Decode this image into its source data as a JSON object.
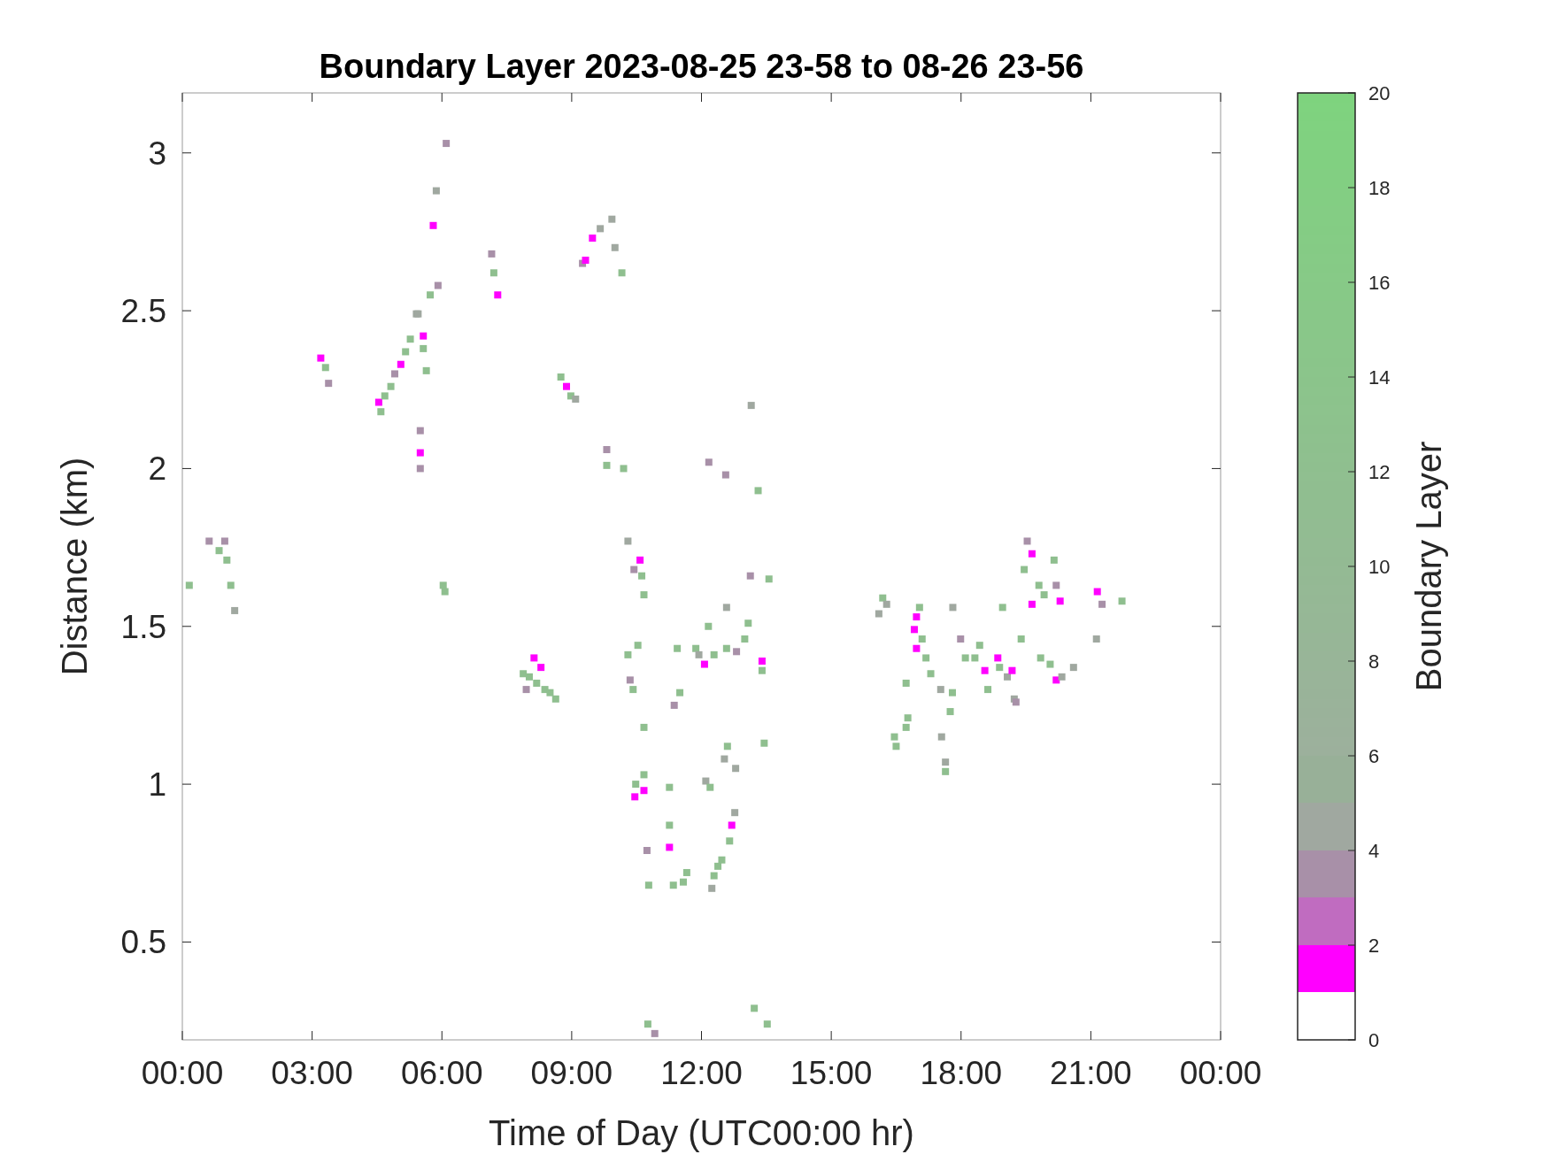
{
  "chart_data": {
    "type": "scatter",
    "title": "Boundary Layer 2023-08-25 23-58 to 08-26 23-56",
    "xlabel": "Time of Day (UTC00:00 hr)",
    "ylabel": "Distance (km)",
    "clabel": "Boundary Layer",
    "marker": "square",
    "grid": false,
    "xlim": [
      0,
      24
    ],
    "ylim": [
      0.19,
      3.19
    ],
    "xticks": [
      {
        "value": 0,
        "label": "00:00"
      },
      {
        "value": 3,
        "label": "03:00"
      },
      {
        "value": 6,
        "label": "06:00"
      },
      {
        "value": 9,
        "label": "09:00"
      },
      {
        "value": 12,
        "label": "12:00"
      },
      {
        "value": 15,
        "label": "15:00"
      },
      {
        "value": 18,
        "label": "18:00"
      },
      {
        "value": 21,
        "label": "21:00"
      },
      {
        "value": 24,
        "label": "00:00"
      }
    ],
    "yticks": [
      0.5,
      1,
      1.5,
      2,
      2.5,
      3
    ],
    "clim": [
      0,
      20
    ],
    "cticks": [
      0,
      2,
      4,
      6,
      8,
      10,
      12,
      14,
      16,
      18,
      20
    ],
    "series": [
      {
        "x": [
          0.16,
          0.62,
          0.85,
          0.98,
          1.03,
          1.12,
          1.21,
          3.2,
          3.31,
          3.38,
          4.54,
          4.59,
          4.68,
          4.82,
          4.91,
          5.05,
          5.16,
          5.27,
          5.41,
          5.57,
          5.57,
          5.64,
          5.45,
          5.73,
          5.91,
          5.5,
          5.5,
          5.5,
          5.8,
          5.87,
          6.1,
          6.03,
          6.07,
          7.15,
          7.2,
          7.29,
          9.25,
          9.32,
          9.48,
          9.66,
          9.93,
          10.0,
          10.16,
          8.75,
          8.88,
          8.98,
          9.09,
          9.81,
          9.81,
          10.2,
          12.17,
          12.56,
          13.31,
          13.15,
          7.88,
          8.02,
          8.13,
          8.19,
          8.29,
          8.38,
          8.5,
          8.63,
          7.95,
          10.3,
          10.44,
          10.58,
          10.62,
          10.67,
          10.3,
          10.35,
          10.42,
          10.53,
          10.67,
          10.46,
          10.48,
          10.67,
          10.67,
          10.74,
          10.78,
          11.26,
          11.26,
          11.26,
          11.35,
          11.58,
          11.66,
          11.37,
          11.5,
          11.44,
          11.87,
          11.94,
          12.07,
          12.16,
          12.29,
          12.58,
          12.58,
          12.81,
          13.0,
          13.08,
          13.4,
          13.4,
          13.13,
          13.56,
          12.1,
          12.2,
          12.53,
          12.6,
          12.79,
          13.45,
          12.29,
          12.38,
          12.47,
          12.65,
          12.7,
          12.77,
          12.24,
          10.76,
          10.92,
          13.22,
          13.52,
          16.19,
          16.28,
          16.1,
          16.97,
          16.92,
          17.04,
          17.1,
          16.97,
          17.19,
          17.3,
          17.53,
          16.77,
          16.73,
          16.5,
          16.46,
          16.73,
          17.55,
          17.64,
          17.64,
          17.75,
          17.8,
          17.81,
          17.99,
          18.1,
          18.32,
          18.43,
          18.55,
          18.62,
          18.85,
          18.89,
          18.96,
          19.07,
          19.18,
          19.23,
          19.27,
          19.39,
          19.53,
          19.46,
          19.64,
          19.64,
          19.8,
          19.92,
          20.15,
          20.2,
          19.84,
          20.06,
          20.2,
          20.33,
          20.6,
          20.29,
          21.15,
          21.26,
          21.13,
          21.72
        ],
        "values": [
          1.63,
          1.77,
          1.74,
          1.77,
          1.71,
          1.63,
          1.55,
          2.35,
          2.32,
          2.27,
          2.21,
          2.18,
          2.23,
          2.26,
          2.3,
          2.33,
          2.37,
          2.41,
          2.49,
          2.42,
          2.38,
          2.31,
          2.49,
          2.55,
          2.58,
          2.12,
          2.05,
          2.0,
          2.77,
          2.88,
          3.03,
          1.63,
          1.61,
          2.68,
          2.62,
          2.55,
          2.65,
          2.66,
          2.73,
          2.76,
          2.79,
          2.7,
          2.62,
          2.29,
          2.26,
          2.23,
          2.22,
          2.06,
          2.01,
          2.0,
          2.02,
          1.98,
          1.93,
          2.2,
          1.35,
          1.34,
          1.4,
          1.32,
          1.37,
          1.3,
          1.29,
          1.27,
          1.3,
          1.77,
          1.68,
          1.71,
          1.66,
          1.6,
          1.41,
          1.33,
          1.3,
          1.44,
          1.18,
          0.96,
          1.0,
          0.98,
          1.03,
          0.79,
          0.68,
          0.99,
          0.87,
          0.8,
          0.68,
          0.69,
          0.72,
          1.25,
          1.29,
          1.43,
          1.43,
          1.41,
          1.38,
          1.5,
          1.41,
          1.56,
          1.43,
          1.42,
          1.46,
          1.51,
          1.39,
          1.36,
          1.66,
          1.65,
          1.01,
          0.99,
          1.08,
          1.12,
          1.05,
          1.13,
          0.71,
          0.74,
          0.76,
          0.82,
          0.87,
          0.91,
          0.67,
          0.24,
          0.21,
          0.29,
          0.24,
          1.59,
          1.57,
          1.54,
          1.53,
          1.49,
          1.56,
          1.46,
          1.43,
          1.4,
          1.35,
          1.3,
          1.21,
          1.32,
          1.12,
          1.15,
          1.18,
          1.15,
          1.04,
          1.07,
          1.23,
          1.29,
          1.56,
          1.46,
          1.4,
          1.4,
          1.44,
          1.36,
          1.3,
          1.4,
          1.37,
          1.56,
          1.34,
          1.36,
          1.27,
          1.26,
          1.46,
          1.77,
          1.68,
          1.73,
          1.57,
          1.63,
          1.6,
          1.71,
          1.63,
          1.4,
          1.38,
          1.33,
          1.34,
          1.37,
          1.58,
          1.61,
          1.57,
          1.46,
          1.58
        ],
        "cvalues": [
          12,
          3.5,
          12,
          3.5,
          12,
          12,
          4.5,
          1.5,
          12,
          3.5,
          1.5,
          12,
          12,
          12,
          3.5,
          1.5,
          12,
          12,
          4.5,
          1.5,
          12,
          12,
          4.5,
          12,
          3.5,
          3.5,
          1.5,
          3.5,
          1.5,
          4.5,
          3.5,
          12,
          12,
          3.5,
          12,
          1.5,
          3.5,
          1.5,
          1.5,
          4.5,
          4.5,
          4.5,
          12,
          12,
          1.5,
          12,
          4.5,
          3.5,
          12,
          12,
          3.5,
          3.5,
          12,
          4.5,
          12,
          12,
          1.5,
          12,
          1.5,
          12,
          12,
          12,
          3.5,
          4.5,
          3.5,
          1.5,
          12,
          12,
          12,
          3.5,
          12,
          12,
          12,
          1.5,
          12,
          1.5,
          12,
          3.5,
          12,
          12,
          12,
          1.5,
          12,
          12,
          12,
          3.5,
          12,
          12,
          12,
          4.5,
          1.5,
          12,
          12,
          4.5,
          12,
          3.5,
          12,
          12,
          1.5,
          12,
          3.5,
          12,
          4.5,
          12,
          4.5,
          12,
          4.5,
          12,
          12,
          12,
          12,
          12,
          1.5,
          4.5,
          4.5,
          12,
          3.5,
          12,
          12,
          12,
          4.5,
          4.5,
          1.5,
          1.5,
          12,
          12,
          1.5,
          12,
          12,
          4.5,
          12,
          12,
          12,
          12,
          12,
          4.5,
          12,
          4.5,
          12,
          12,
          4.5,
          3.5,
          12,
          12,
          12,
          1.5,
          12,
          1.5,
          12,
          12,
          4.5,
          1.5,
          4.5,
          3.5,
          12,
          3.5,
          12,
          1.5,
          1.5,
          12,
          12,
          12,
          3.5,
          12,
          12,
          1.5,
          4.5,
          4.5,
          1.5,
          1.5,
          3.5,
          4.5,
          12
        ]
      }
    ]
  }
}
